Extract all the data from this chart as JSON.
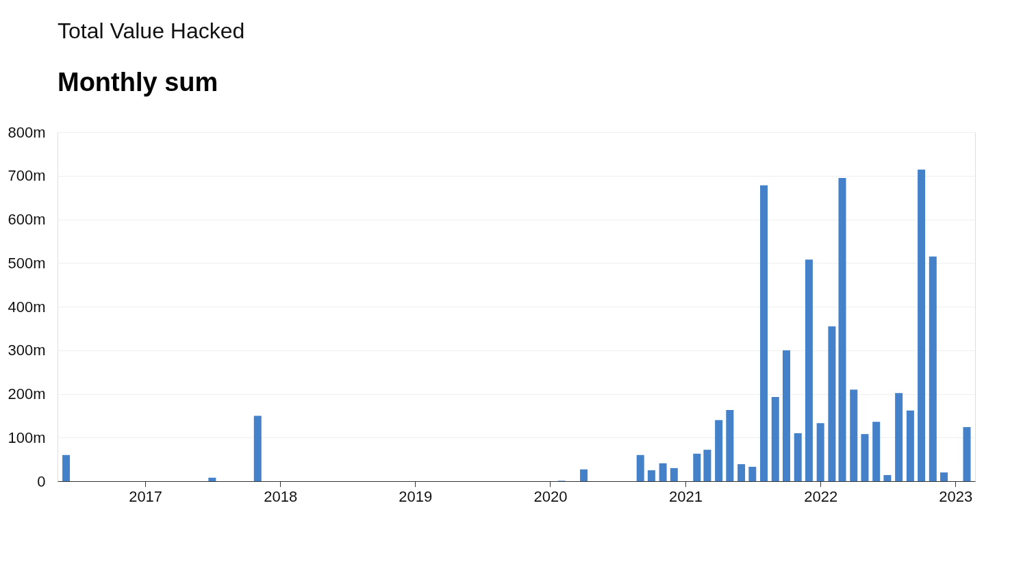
{
  "chart_data": {
    "type": "bar",
    "title": "Total Value Hacked",
    "subtitle": "Monthly sum",
    "x": [
      "2016-06",
      "2017-07",
      "2017-11",
      "2020-02",
      "2020-04",
      "2020-09",
      "2020-10",
      "2020-11",
      "2020-12",
      "2021-02",
      "2021-03",
      "2021-04",
      "2021-05",
      "2021-06",
      "2021-07",
      "2021-08",
      "2021-09",
      "2021-10",
      "2021-11",
      "2021-12",
      "2022-01",
      "2022-02",
      "2022-03",
      "2022-04",
      "2022-05",
      "2022-06",
      "2022-07",
      "2022-08",
      "2022-09",
      "2022-10",
      "2022-11",
      "2022-12",
      "2023-02"
    ],
    "values": [
      60,
      8,
      150,
      1,
      27,
      60,
      25,
      41,
      30,
      63,
      72,
      140,
      163,
      39,
      33,
      678,
      193,
      300,
      110,
      508,
      133,
      355,
      695,
      210,
      108,
      136,
      14,
      202,
      162,
      714,
      515,
      20,
      124
    ],
    "color": "#4481c8",
    "xlim": [
      "2016-05-18",
      "2023-02-14"
    ],
    "xticks": [
      {
        "value": "2017",
        "label": "2017"
      },
      {
        "value": "2018",
        "label": "2018"
      },
      {
        "value": "2019",
        "label": "2019"
      },
      {
        "value": "2020",
        "label": "2020"
      },
      {
        "value": "2021",
        "label": "2021"
      },
      {
        "value": "2022",
        "label": "2022"
      },
      {
        "value": "2023",
        "label": "2023"
      }
    ],
    "ylim": [
      0,
      800
    ],
    "yticks": [
      0,
      {
        "value": 100,
        "label": "100m"
      },
      {
        "value": 200,
        "label": "200m"
      },
      {
        "value": 300,
        "label": "300m"
      },
      {
        "value": 400,
        "label": "400m"
      },
      {
        "value": 500,
        "label": "500m"
      },
      {
        "value": 600,
        "label": "600m"
      },
      {
        "value": 700,
        "label": "700m"
      },
      {
        "value": 800,
        "label": "800m"
      }
    ],
    "grid": "y"
  }
}
